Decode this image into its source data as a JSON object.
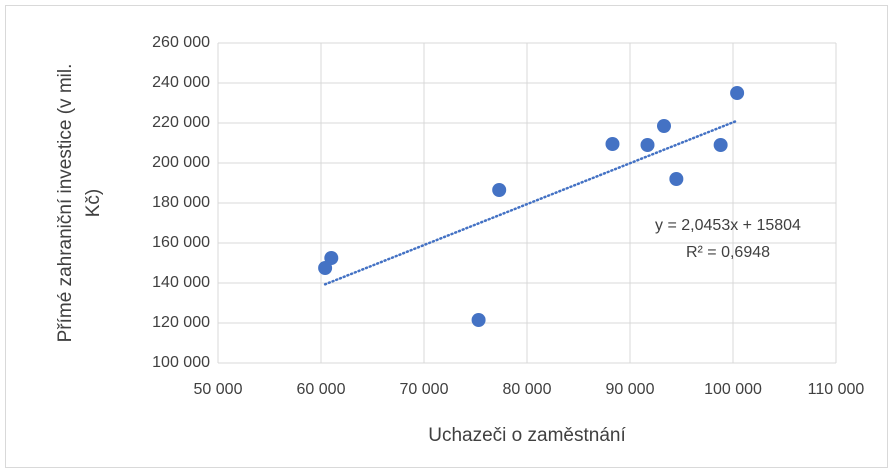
{
  "chart_data": {
    "type": "scatter",
    "xlabel": "Uchazeči o zaměstnání",
    "ylabel_lines": [
      "Přímé zahraniční investice (v mil.",
      "Kč)"
    ],
    "x": [
      60400,
      61000,
      75300,
      77300,
      88300,
      91700,
      93300,
      94500,
      98800,
      100400
    ],
    "values": [
      147500,
      152500,
      121500,
      186500,
      209500,
      209000,
      218500,
      192000,
      209000,
      235000
    ],
    "color": "#4472c4",
    "xlim": [
      50000,
      110000
    ],
    "xticks": [
      {
        "value": 50000,
        "label": "50 000"
      },
      {
        "value": 60000,
        "label": "60 000"
      },
      {
        "value": 70000,
        "label": "70 000"
      },
      {
        "value": 80000,
        "label": "80 000"
      },
      {
        "value": 90000,
        "label": "90 000"
      },
      {
        "value": 100000,
        "label": "100 000"
      },
      {
        "value": 110000,
        "label": "110 000"
      }
    ],
    "ylim": [
      100000,
      260000
    ],
    "yticks": [
      {
        "value": 100000,
        "label": "100 000"
      },
      {
        "value": 120000,
        "label": "120 000"
      },
      {
        "value": 140000,
        "label": "140 000"
      },
      {
        "value": 160000,
        "label": "160 000"
      },
      {
        "value": 180000,
        "label": "180 000"
      },
      {
        "value": 200000,
        "label": "200 000"
      },
      {
        "value": 220000,
        "label": "220 000"
      },
      {
        "value": 240000,
        "label": "240 000"
      },
      {
        "value": 260000,
        "label": "260 000"
      }
    ],
    "grid": true,
    "trendline": {
      "slope": 2.0453,
      "intercept": 15804,
      "equation": "y = 2,0453x + 15804",
      "r_squared": "R² = 0,6948"
    }
  }
}
